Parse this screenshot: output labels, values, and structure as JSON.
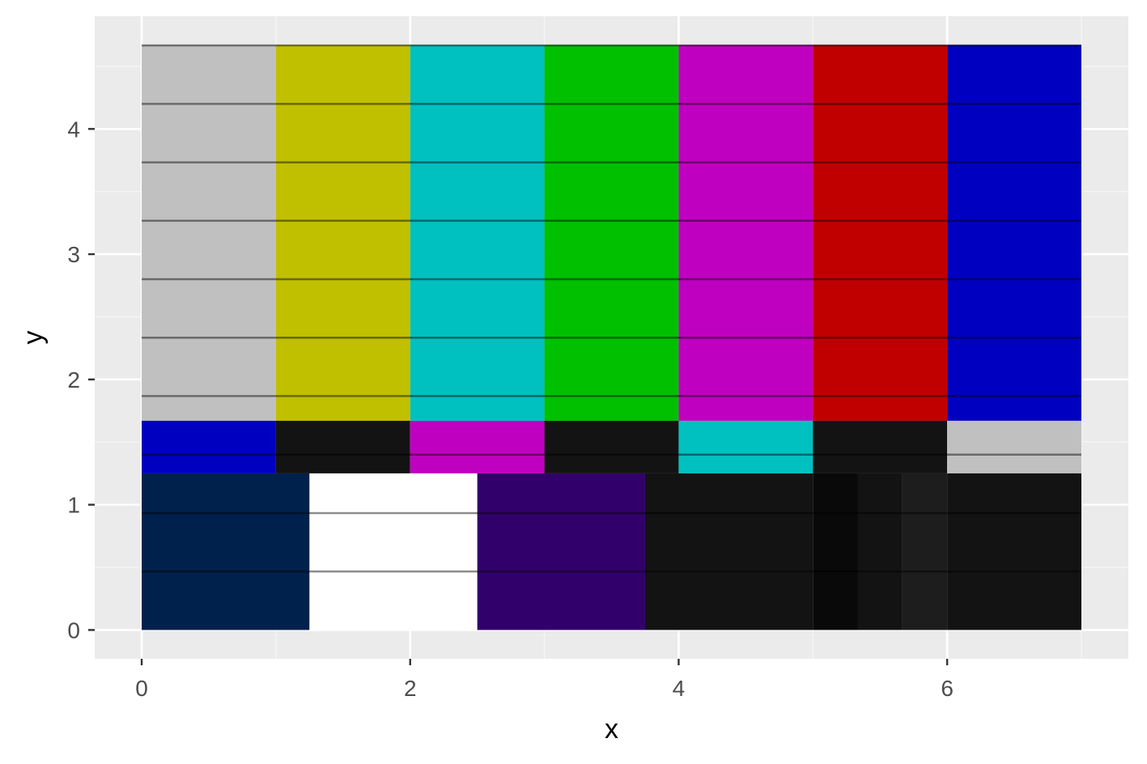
{
  "chart_data": {
    "type": "heatmap",
    "title": "",
    "xlabel": "x",
    "ylabel": "y",
    "xlim": [
      -0.35,
      7.35
    ],
    "ylim": [
      -0.23,
      4.9
    ],
    "grid": true,
    "legend": "none",
    "x_ticks": [
      0,
      2,
      4,
      6
    ],
    "y_ticks": [
      0,
      1,
      2,
      3,
      4
    ],
    "rects": [
      {
        "x0": 0,
        "x1": 1,
        "y0": 1.67,
        "y1": 4.67,
        "color": "#c0c0c0"
      },
      {
        "x0": 1,
        "x1": 2,
        "y0": 1.67,
        "y1": 4.67,
        "color": "#c0c000"
      },
      {
        "x0": 2,
        "x1": 3,
        "y0": 1.67,
        "y1": 4.67,
        "color": "#00c0c0"
      },
      {
        "x0": 3,
        "x1": 4,
        "y0": 1.67,
        "y1": 4.67,
        "color": "#00c000"
      },
      {
        "x0": 4,
        "x1": 5,
        "y0": 1.67,
        "y1": 4.67,
        "color": "#c000c0"
      },
      {
        "x0": 5,
        "x1": 6,
        "y0": 1.67,
        "y1": 4.67,
        "color": "#c00000"
      },
      {
        "x0": 6,
        "x1": 7,
        "y0": 1.67,
        "y1": 4.67,
        "color": "#0000c0"
      },
      {
        "x0": 0,
        "x1": 1,
        "y0": 1.25,
        "y1": 1.67,
        "color": "#0000c0"
      },
      {
        "x0": 1,
        "x1": 2,
        "y0": 1.25,
        "y1": 1.67,
        "color": "#131313"
      },
      {
        "x0": 2,
        "x1": 3,
        "y0": 1.25,
        "y1": 1.67,
        "color": "#c000c0"
      },
      {
        "x0": 3,
        "x1": 4,
        "y0": 1.25,
        "y1": 1.67,
        "color": "#131313"
      },
      {
        "x0": 4,
        "x1": 5,
        "y0": 1.25,
        "y1": 1.67,
        "color": "#00c0c0"
      },
      {
        "x0": 5,
        "x1": 6,
        "y0": 1.25,
        "y1": 1.67,
        "color": "#131313"
      },
      {
        "x0": 6,
        "x1": 7,
        "y0": 1.25,
        "y1": 1.67,
        "color": "#c0c0c0"
      },
      {
        "x0": 0,
        "x1": 1.25,
        "y0": 0,
        "y1": 1.25,
        "color": "#00214c"
      },
      {
        "x0": 1.25,
        "x1": 2.5,
        "y0": 0,
        "y1": 1.25,
        "color": "#ffffff"
      },
      {
        "x0": 2.5,
        "x1": 3.75,
        "y0": 0,
        "y1": 1.25,
        "color": "#32006a"
      },
      {
        "x0": 3.75,
        "x1": 5,
        "y0": 0,
        "y1": 1.25,
        "color": "#131313"
      },
      {
        "x0": 5,
        "x1": 5.333,
        "y0": 0,
        "y1": 1.25,
        "color": "#090909"
      },
      {
        "x0": 5.333,
        "x1": 5.667,
        "y0": 0,
        "y1": 1.25,
        "color": "#131313"
      },
      {
        "x0": 5.667,
        "x1": 6,
        "y0": 0,
        "y1": 1.25,
        "color": "#1d1d1d"
      },
      {
        "x0": 6,
        "x1": 7,
        "y0": 0,
        "y1": 1.25,
        "color": "#131313"
      }
    ],
    "hlines": [
      {
        "y": 0.467,
        "x0": 0,
        "x1": 7
      },
      {
        "y": 0.933,
        "x0": 0,
        "x1": 7
      },
      {
        "y": 1.4,
        "x0": 0,
        "x1": 7
      },
      {
        "y": 1.867,
        "x0": 0,
        "x1": 7
      },
      {
        "y": 2.333,
        "x0": 0,
        "x1": 7
      },
      {
        "y": 2.8,
        "x0": 0,
        "x1": 7
      },
      {
        "y": 3.267,
        "x0": 0,
        "x1": 7
      },
      {
        "y": 3.733,
        "x0": 0,
        "x1": 7
      },
      {
        "y": 4.2,
        "x0": 0,
        "x1": 7
      },
      {
        "y": 4.667,
        "x0": 0,
        "x1": 7
      }
    ],
    "colors": {
      "panel_background": "#ebebeb",
      "grid_major": "#ffffff",
      "grid_minor": "#f5f5f5",
      "tick_mark": "#333333",
      "hline": "#000000"
    }
  }
}
